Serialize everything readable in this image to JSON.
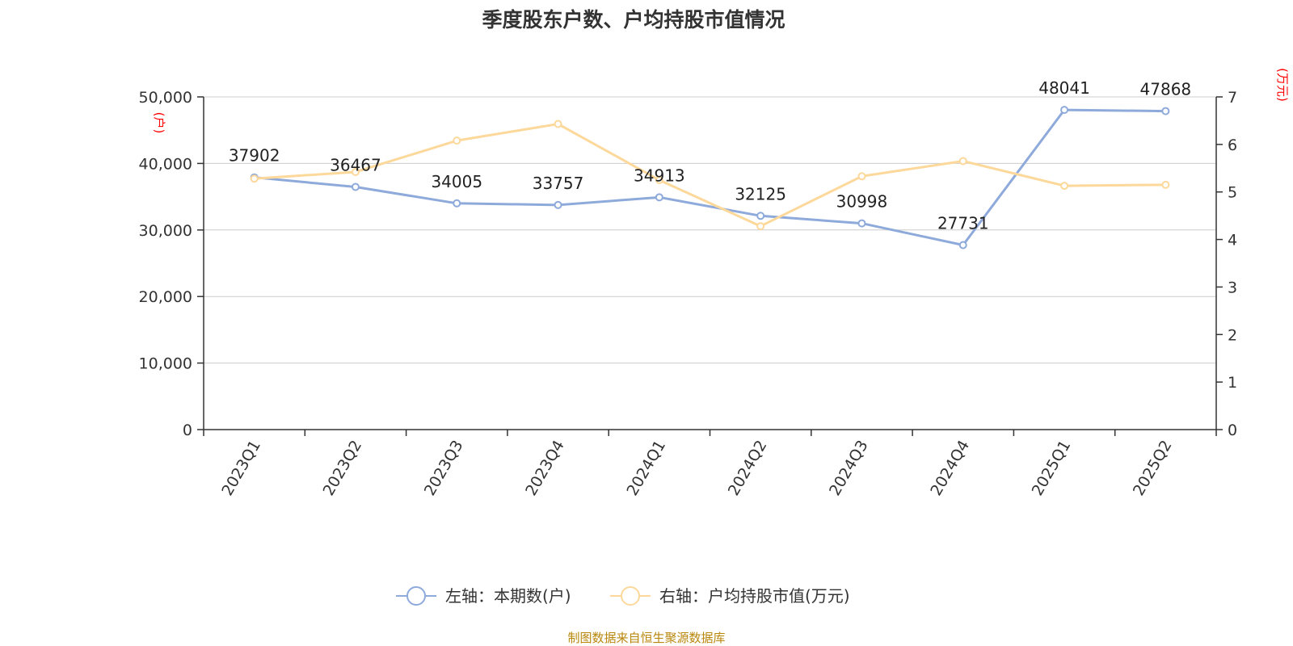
{
  "chart_data": {
    "type": "line",
    "title": "季度股东户数、户均持股市值情况",
    "categories": [
      "2023Q1",
      "2023Q2",
      "2023Q3",
      "2023Q4",
      "2024Q1",
      "2024Q2",
      "2024Q3",
      "2024Q4",
      "2025Q1",
      "2025Q2"
    ],
    "series": [
      {
        "name": "左轴：本期数(户)",
        "axis": "left",
        "color": "#8eaadb",
        "values": [
          37902,
          36467,
          34005,
          33757,
          34913,
          32125,
          30998,
          27731,
          48041,
          47868
        ],
        "data_labels": [
          "37902",
          "36467",
          "34005",
          "33757",
          "34913",
          "32125",
          "30998",
          "27731",
          "48041",
          "47868"
        ]
      },
      {
        "name": "右轴：户均持股市值(万元)",
        "axis": "right",
        "color": "#fdd89b",
        "values": [
          5.28,
          5.42,
          6.08,
          6.43,
          5.25,
          4.28,
          5.33,
          5.65,
          5.13,
          5.15
        ]
      }
    ],
    "left_axis": {
      "unit_label": "(户)",
      "ylim": [
        0,
        50000
      ],
      "ticks": [
        0,
        10000,
        20000,
        30000,
        40000,
        50000
      ],
      "tick_labels": [
        "0",
        "10,000",
        "20,000",
        "30,000",
        "40,000",
        "50,000"
      ]
    },
    "right_axis": {
      "unit_label": "(万元)",
      "ylim": [
        0,
        7
      ],
      "ticks": [
        0,
        1,
        2,
        3,
        4,
        5,
        6,
        7
      ],
      "tick_labels": [
        "0",
        "1",
        "2",
        "3",
        "4",
        "5",
        "6",
        "7"
      ]
    },
    "grid": true,
    "legend_position": "bottom-center",
    "source": "制图数据来自恒生聚源数据库"
  }
}
